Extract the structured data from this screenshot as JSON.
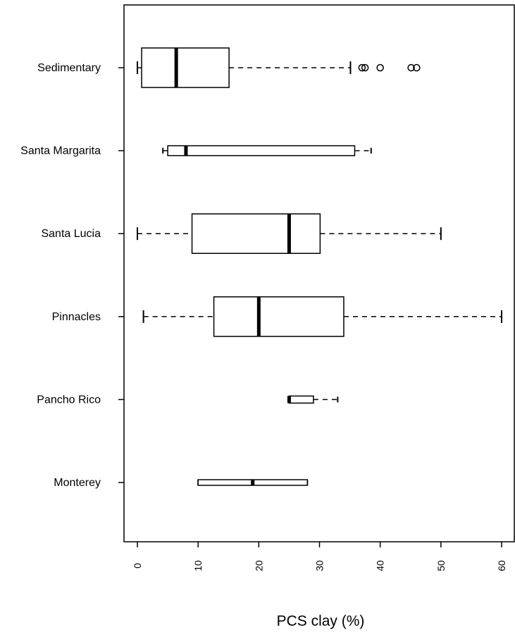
{
  "chart_data": {
    "type": "boxplot",
    "orientation": "horizontal",
    "xlabel": "PCS clay (%)",
    "xlim": [
      -2,
      62
    ],
    "xticks": [
      0,
      10,
      20,
      30,
      40,
      50,
      60
    ],
    "xtick_labels": [
      "0",
      "10",
      "20",
      "30",
      "40",
      "50",
      "60"
    ],
    "tick_label_rotation": 90,
    "grid": false,
    "categories": [
      "Sedimentary",
      "Santa Margarita",
      "Santa Lucia",
      "Pinnacles",
      "Pancho Rico",
      "Monterey"
    ],
    "boxes": [
      {
        "name": "Sedimentary",
        "whisker_low": 0,
        "q1": 0.7,
        "median": 6.4,
        "q3": 15.1,
        "whisker_high": 35.1,
        "outliers": [
          37.0,
          37.5,
          40.0,
          45.1,
          46.0
        ]
      },
      {
        "name": "Santa Margarita",
        "whisker_low": 4.2,
        "q1": 5.0,
        "median": 8.0,
        "q3": 35.8,
        "whisker_high": 38.5,
        "outliers": []
      },
      {
        "name": "Santa Lucia",
        "whisker_low": 0,
        "q1": 9.0,
        "median": 25.0,
        "q3": 30.1,
        "whisker_high": 50.0,
        "outliers": []
      },
      {
        "name": "Pinnacles",
        "whisker_low": 1.0,
        "q1": 12.6,
        "median": 20.0,
        "q3": 34.0,
        "whisker_high": 60.0,
        "outliers": []
      },
      {
        "name": "Pancho Rico",
        "whisker_low": 25.0,
        "q1": 25.0,
        "median": 25.0,
        "q3": 29.0,
        "whisker_high": 33.0,
        "outliers": []
      },
      {
        "name": "Monterey",
        "whisker_low": 10.0,
        "q1": 10.0,
        "median": 19.0,
        "q3": 28.0,
        "whisker_high": 28.0,
        "outliers": []
      }
    ]
  }
}
